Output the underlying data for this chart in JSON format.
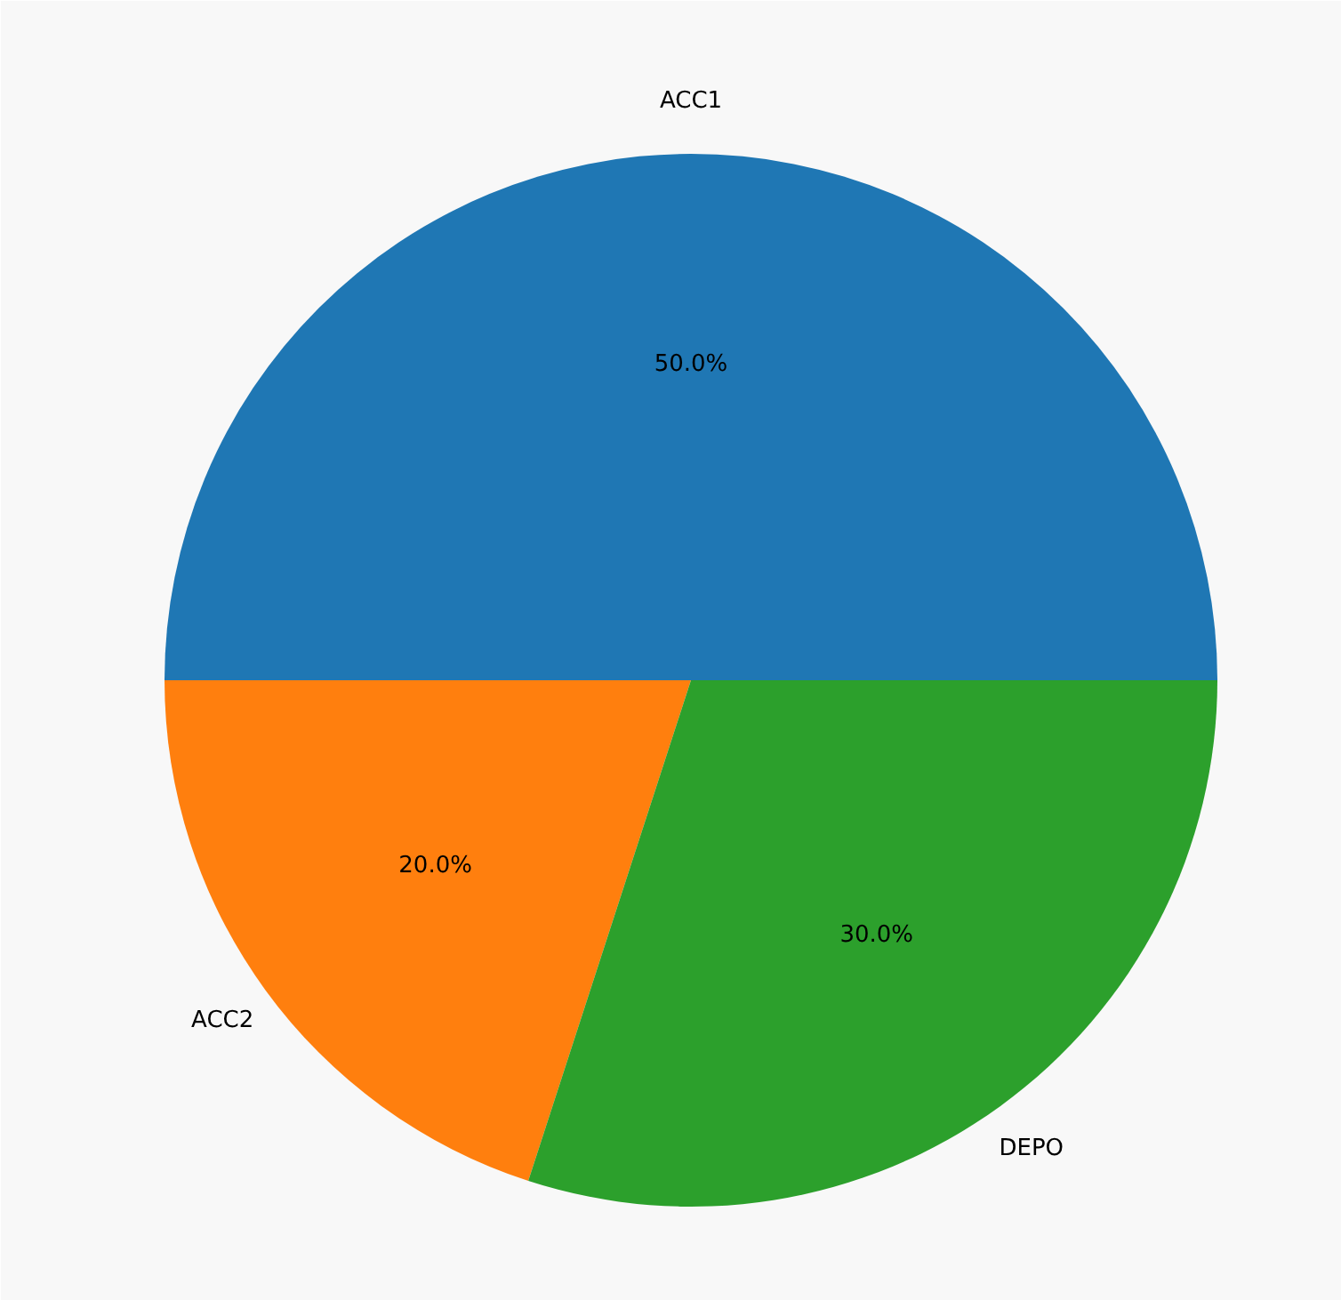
{
  "chart_data": {
    "type": "pie",
    "categories": [
      "ACC1",
      "ACC2",
      "DEPO"
    ],
    "values": [
      50,
      20,
      30
    ],
    "colors": [
      "#1f77b4",
      "#ff7f0e",
      "#2ca02c"
    ],
    "value_labels": [
      "50.0%",
      "20.0%",
      "30.0%"
    ]
  }
}
